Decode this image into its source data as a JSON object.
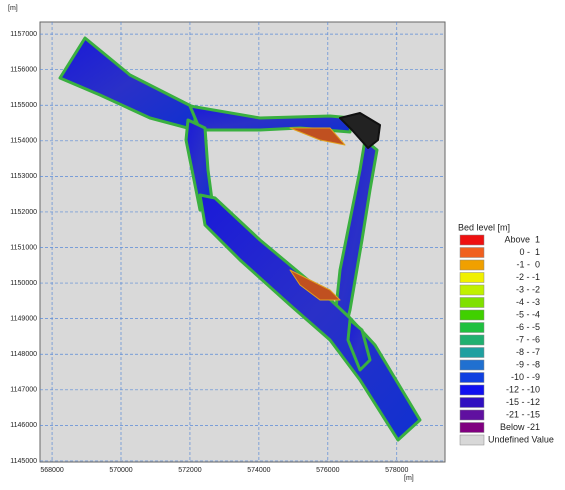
{
  "plot": {
    "x_unit": "[m]",
    "y_unit": "[m]",
    "xlim": [
      567650,
      579400
    ],
    "ylim": [
      1144970,
      1157340
    ],
    "xticks": [
      568000,
      570000,
      572000,
      574000,
      576000,
      578000
    ],
    "yticks": [
      1145000,
      1146000,
      1147000,
      1148000,
      1149000,
      1150000,
      1151000,
      1152000,
      1153000,
      1154000,
      1155000,
      1156000,
      1157000
    ]
  },
  "legend": {
    "title": "Bed level [m]",
    "items": [
      {
        "label": "Above  1",
        "color": "#ee1010"
      },
      {
        "label": "0 -  1",
        "color": "#f06020"
      },
      {
        "label": "-1 -  0",
        "color": "#f0a000"
      },
      {
        "label": "-2 - -1",
        "color": "#f0f000"
      },
      {
        "label": "-3 - -2",
        "color": "#c0f000"
      },
      {
        "label": "-4 - -3",
        "color": "#80e000"
      },
      {
        "label": "-5 - -4",
        "color": "#40d000"
      },
      {
        "label": "-6 - -5",
        "color": "#20c040"
      },
      {
        "label": "-7 - -6",
        "color": "#20b070"
      },
      {
        "label": "-8 - -7",
        "color": "#20a0a0"
      },
      {
        "label": "-9 - -8",
        "color": "#2070d0"
      },
      {
        "label": "-10 - -9",
        "color": "#1040e0"
      },
      {
        "label": "-12 - -10",
        "color": "#1010f0"
      },
      {
        "label": "-15 - -12",
        "color": "#3010c0"
      },
      {
        "label": "-21 - -15",
        "color": "#6010a0"
      },
      {
        "label": "Below -21",
        "color": "#800080"
      },
      {
        "label": "Undefined Value",
        "color": "#d8d8d8"
      }
    ]
  }
}
